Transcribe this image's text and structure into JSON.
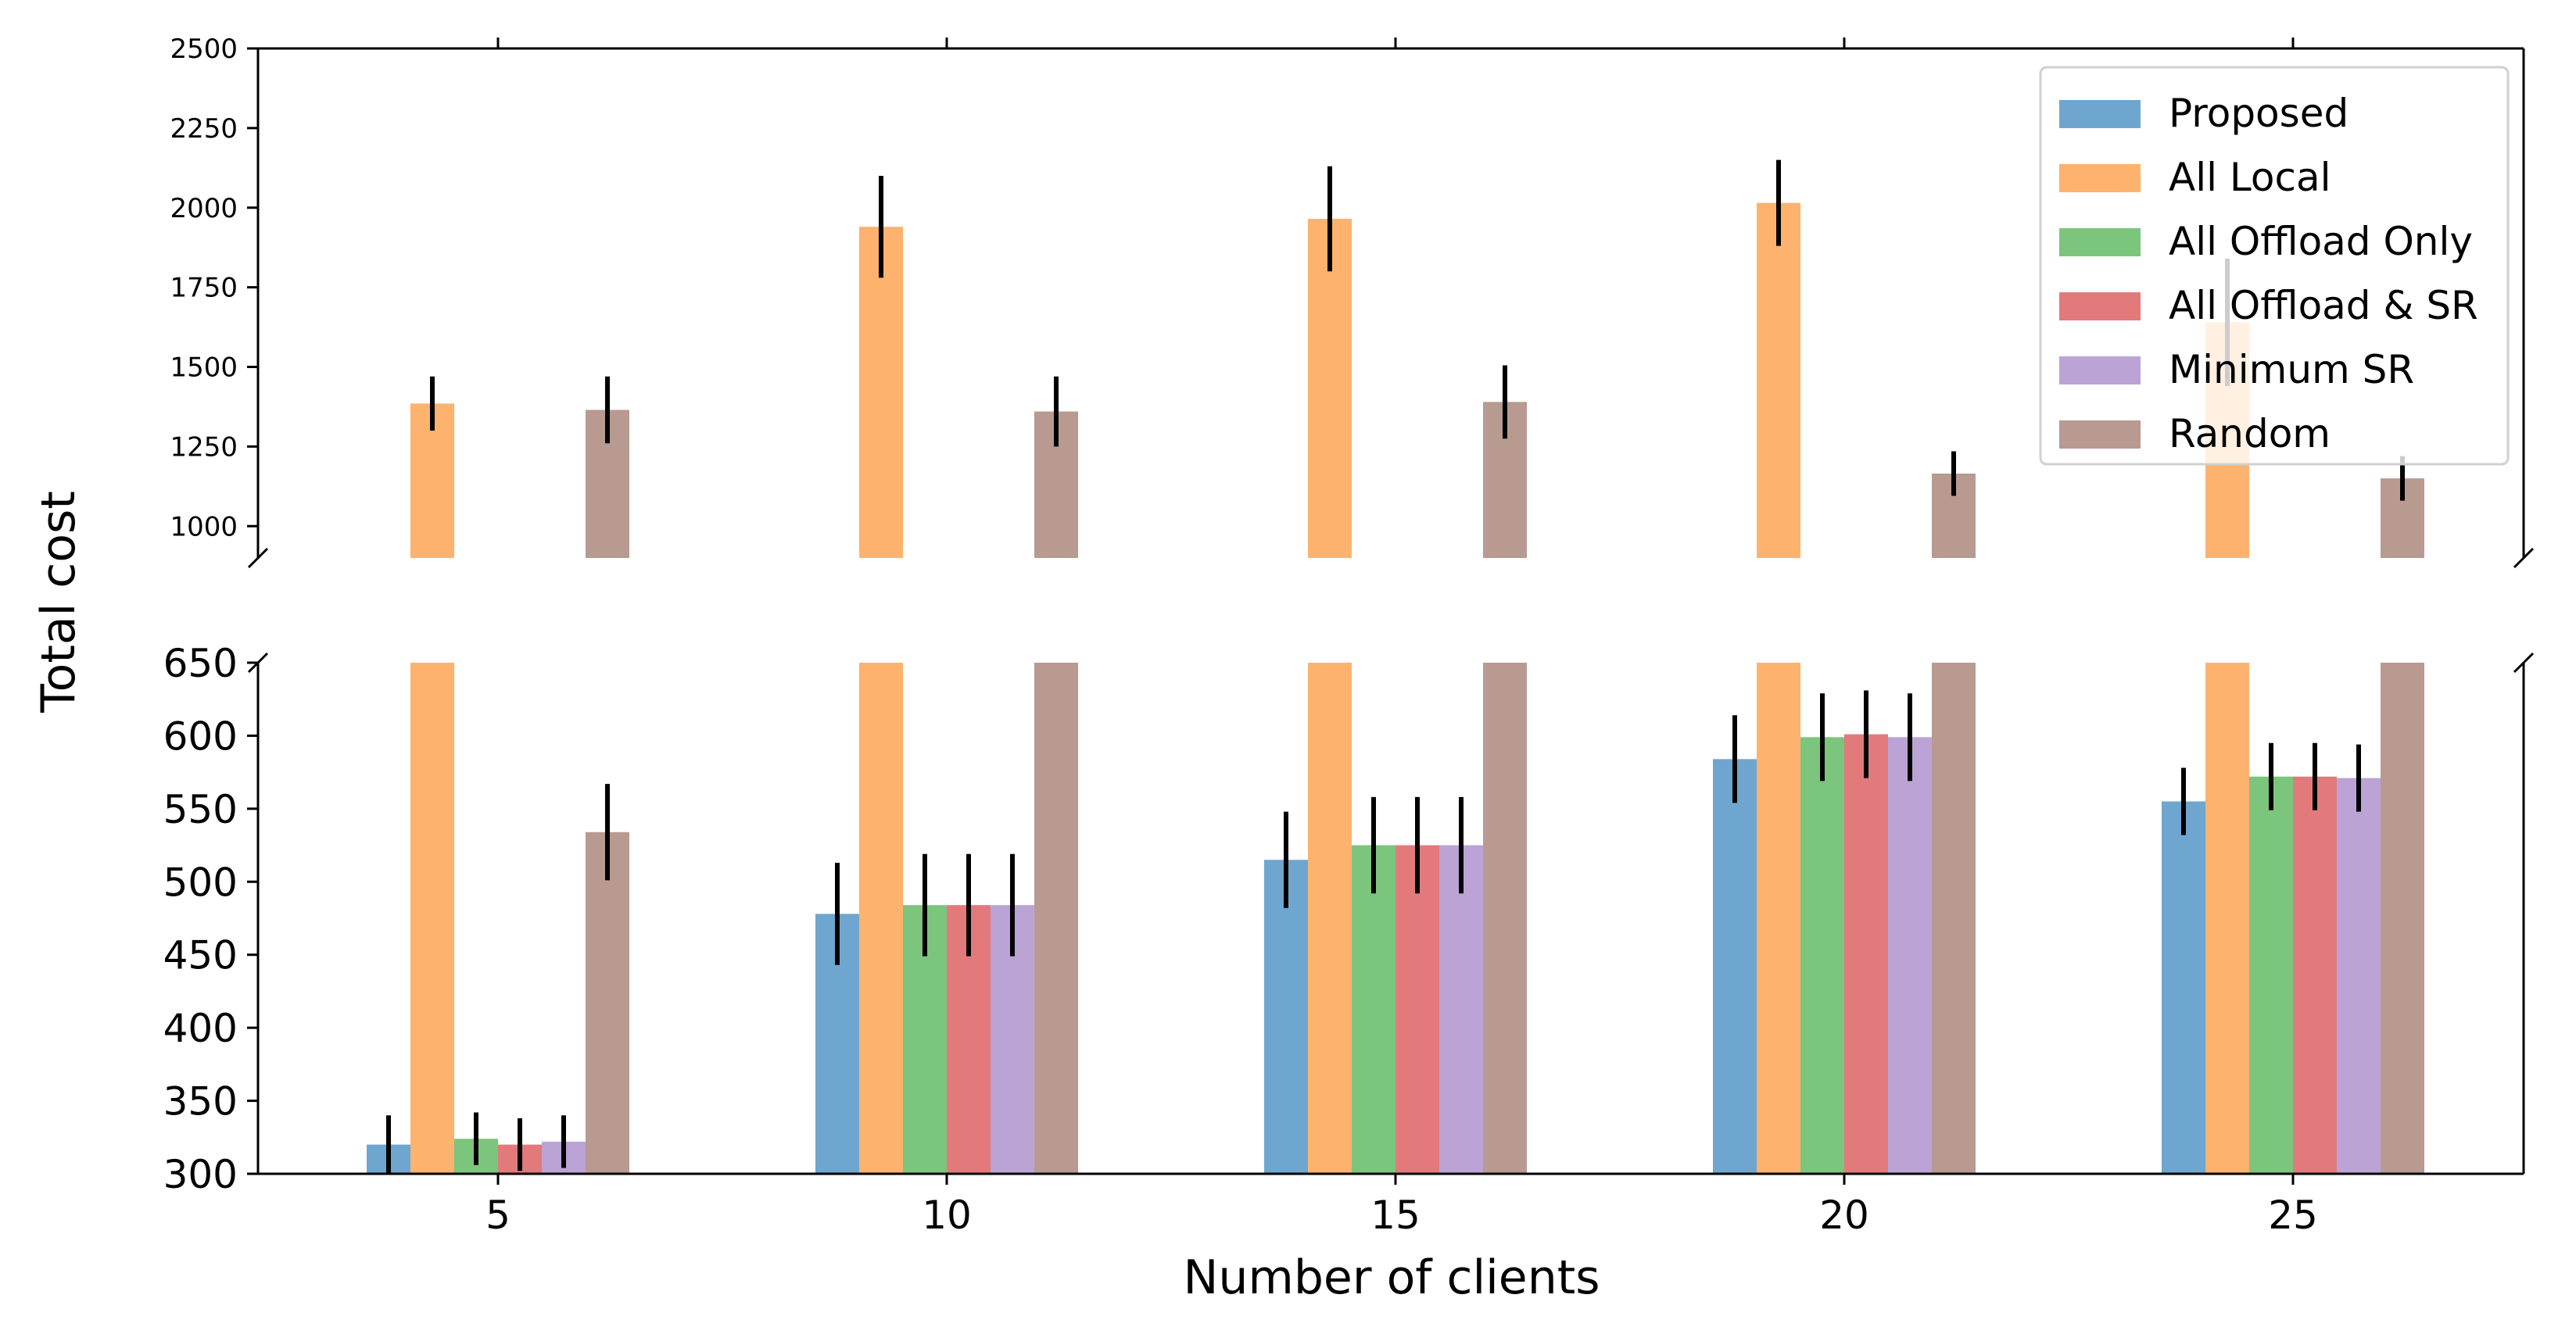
{
  "chart_data": {
    "type": "bar",
    "broken_axis": true,
    "xlabel": "Number of clients",
    "ylabel": "Total cost",
    "categories": [
      "5",
      "10",
      "15",
      "20",
      "25"
    ],
    "upper_panel": {
      "ylim": [
        900,
        2500
      ],
      "yticks": [
        1000,
        1250,
        1500,
        1750,
        2000,
        2250,
        2500
      ]
    },
    "lower_panel": {
      "ylim": [
        300,
        650
      ],
      "yticks": [
        300,
        350,
        400,
        450,
        500,
        550,
        600,
        650
      ]
    },
    "series": [
      {
        "name": "Proposed",
        "color": "#6fa6cf",
        "values": [
          320,
          478,
          515,
          584,
          555
        ],
        "errors": [
          20,
          35,
          33,
          30,
          23
        ]
      },
      {
        "name": "All Local",
        "color": "#fdb26e",
        "values": [
          1385,
          1940,
          1965,
          2015,
          1640
        ],
        "errors": [
          85,
          160,
          165,
          135,
          200
        ]
      },
      {
        "name": "All Offload Only",
        "color": "#7cc57c",
        "values": [
          324,
          484,
          525,
          599,
          572
        ],
        "errors": [
          18,
          35,
          33,
          30,
          23
        ]
      },
      {
        "name": "All Offload & SR",
        "color": "#e27a7b",
        "values": [
          320,
          484,
          525,
          601,
          572
        ],
        "errors": [
          18,
          35,
          33,
          30,
          23
        ]
      },
      {
        "name": "Minimum SR",
        "color": "#bba3d6",
        "values": [
          322,
          484,
          525,
          599,
          571
        ],
        "errors": [
          18,
          35,
          33,
          30,
          23
        ]
      },
      {
        "name": "Random",
        "color": "#b89a90",
        "values": [
          1365,
          1360,
          1390,
          1165,
          1150
        ],
        "errors": [
          105,
          110,
          115,
          70,
          70
        ],
        "lower_values": [
          534,
          650,
          650,
          650,
          650
        ],
        "lower_errors": [
          33,
          0,
          0,
          0,
          0
        ]
      }
    ],
    "legend_position": "top-right"
  }
}
